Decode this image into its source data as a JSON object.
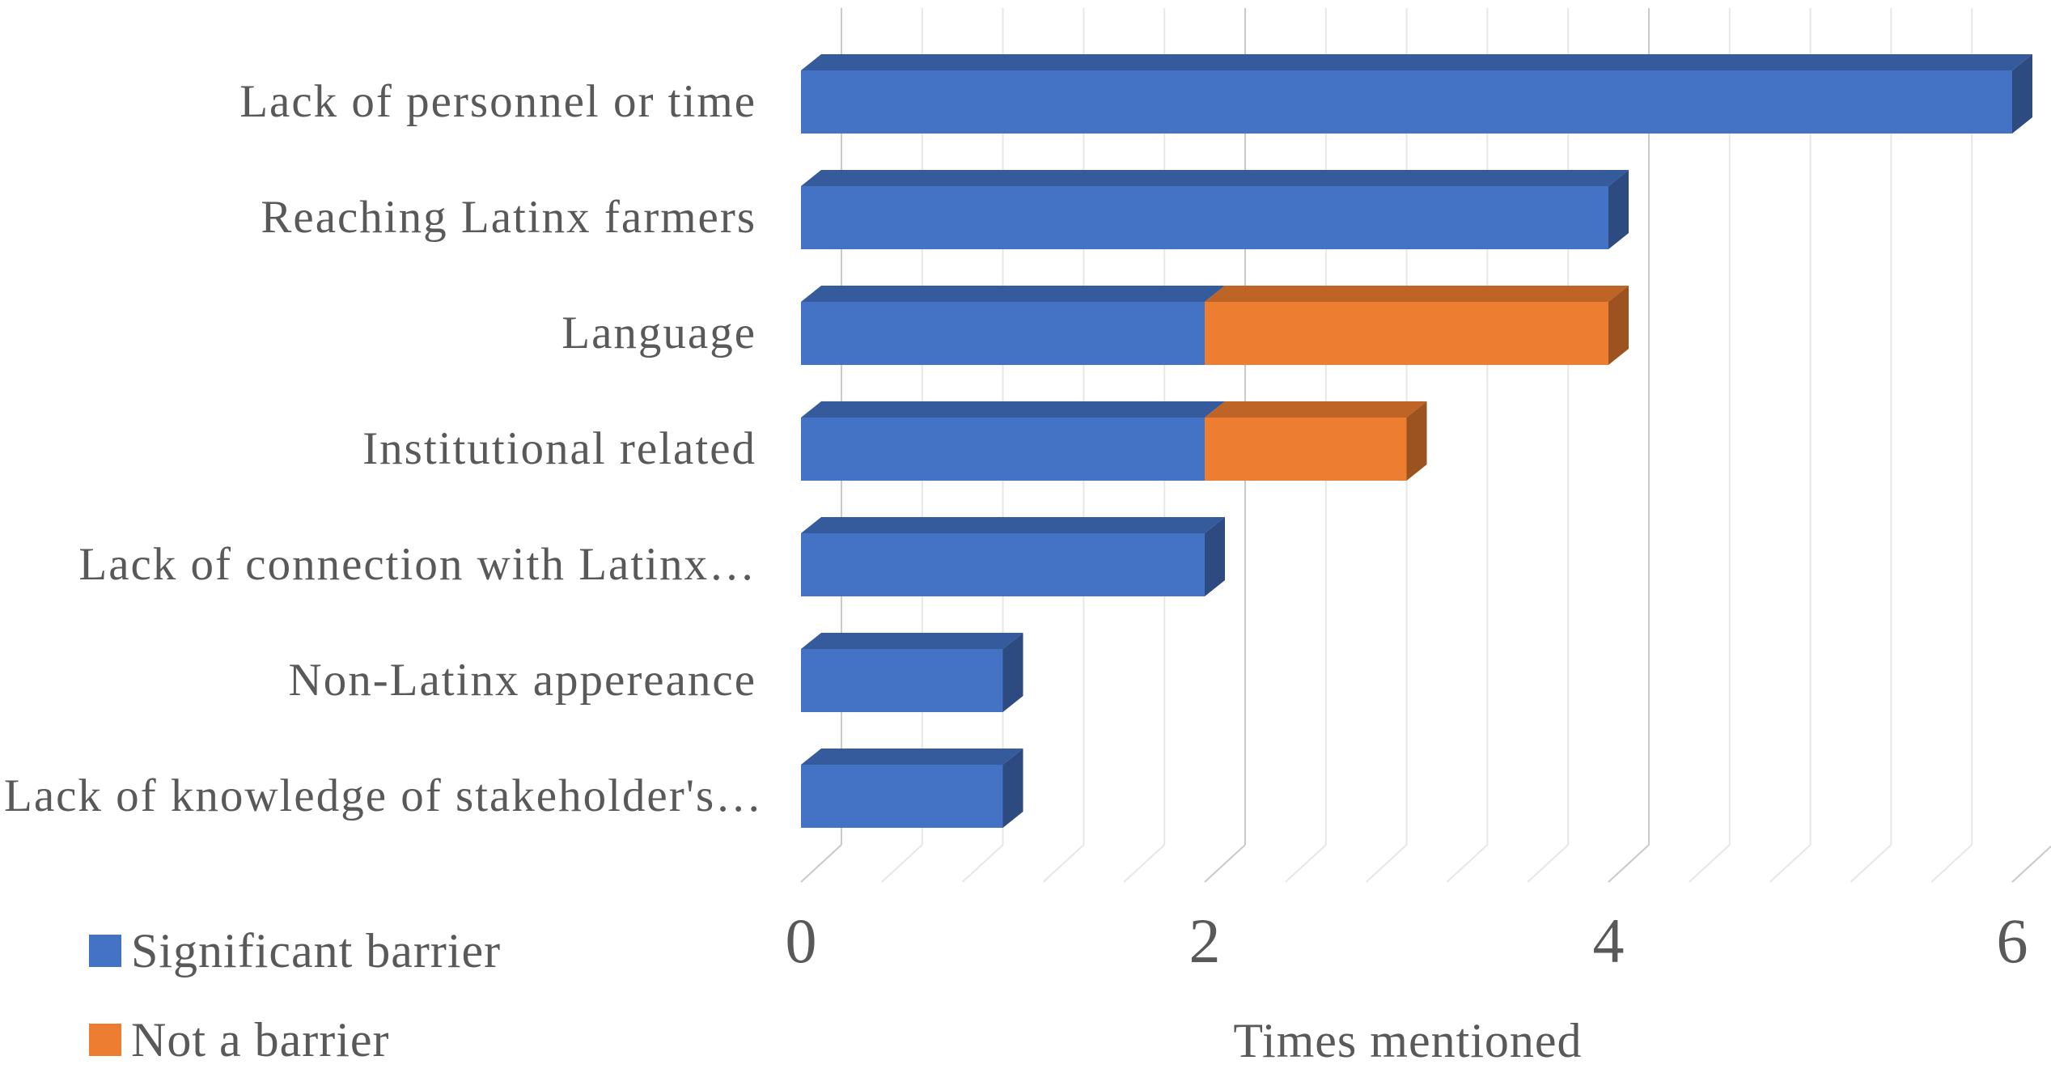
{
  "chart_data": {
    "type": "bar",
    "orientation": "horizontal",
    "stacked": true,
    "effect": "3d",
    "categories": [
      "Lack of personnel or time",
      "Reaching Latinx farmers",
      "Language",
      "Institutional related",
      "Lack of connection with Latinx…",
      "Non-Latinx appereance",
      "Lack of knowledge of stakeholder's…"
    ],
    "series": [
      {
        "name": "Significant barrier",
        "color": "#4472C4",
        "values": [
          6,
          4,
          2,
          2,
          2,
          1,
          1
        ]
      },
      {
        "name": "Not a barrier",
        "color": "#ED7D31",
        "values": [
          0,
          0,
          2,
          1,
          0,
          0,
          0
        ]
      }
    ],
    "title": "",
    "xlabel": "Times mentioned",
    "ylabel": "",
    "xlim": [
      0,
      6
    ],
    "x_ticks": [
      0,
      2,
      4,
      6
    ],
    "minor_unit": 0.4,
    "grid": "vertical-minor-and-major",
    "legend_position": "bottom-left"
  },
  "colors": {
    "text": "#595959",
    "grid_minor": "#E7E7E7",
    "grid_major": "#C9C9C9",
    "background": "#FFFFFF"
  }
}
